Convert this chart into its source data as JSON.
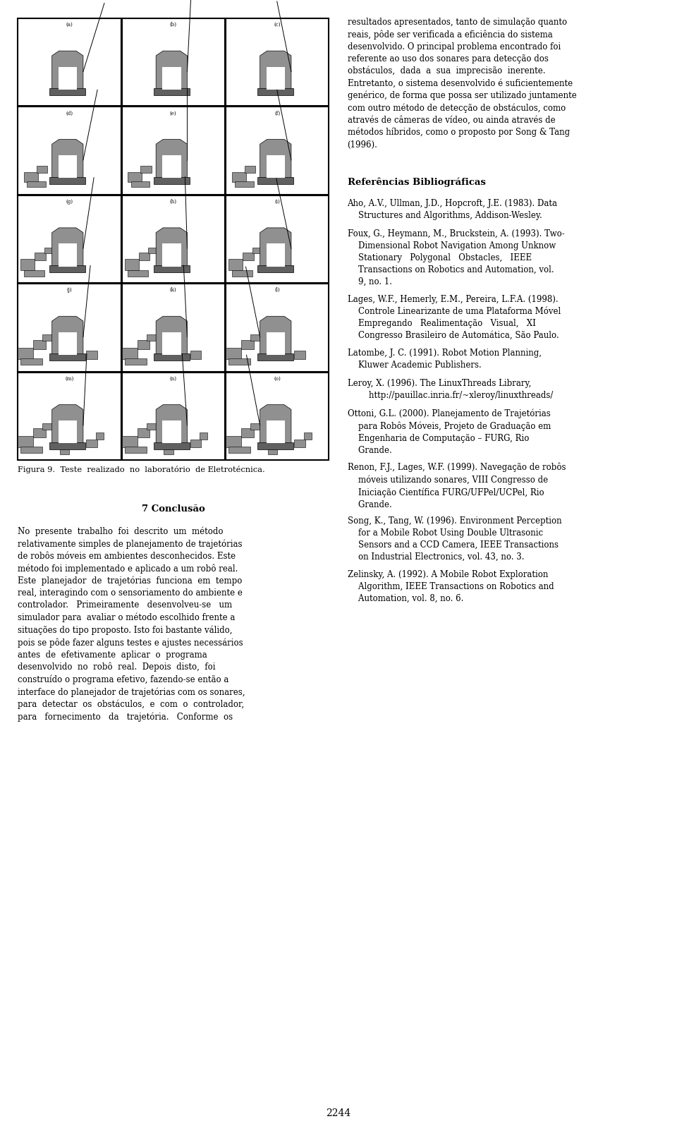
{
  "background_color": "#ffffff",
  "page_width": 9.6,
  "page_height": 15.96,
  "grid_labels": [
    "(a)",
    "(b)",
    "(c)",
    "(d)",
    "(e)",
    "(f)",
    "(g)",
    "(h)",
    "(i)",
    "(j)",
    "(k)",
    "(l)",
    "(m)",
    "(n)",
    "(o)"
  ],
  "figure_caption": "Figura 9.  Teste  realizado  no  laboratório  de Eletrotécnica.",
  "section_title": "7 Conclusão",
  "conclusion_text": "No  presente  trabalho  foi  descrito  um  método\nrelativamente simples de planejamento de trajetórias\nde robôs móveis em ambientes desconhecidos. Este\nmétodo foi implementado e aplicado a um robô real.\nEste  planejador  de  trajetórias  funciona  em  tempo\nreal, interagindo com o sensoriamento do ambiente e\ncontrolador.   Primeiramente   desenvolveu-se   um\nsimulador para  avaliar o método escolhido frente a\nsituações do tipo proposto. Isto foi bastante válido,\npois se pôde fazer alguns testes e ajustes necessários\nantes  de  efetivamente  aplicar  o  programa\ndesenvolvido  no  robô  real.  Depois  disto,  foi\nconstruído o programa efetivo, fazendo-se então a\ninterface do planejador de trajetórias com os sonares,\npara  detectar  os  obstáculos,  e  com  o  controlador,\npara   fornecimento   da   trajetória.   Conforme  os",
  "right_col_text_top": "resultados apresentados, tanto de simulação quanto\nreais, pôde ser verificada a eficiência do sistema\ndesenvolvido. O principal problema encontrado foi\nreferente ao uso dos sonares para detecção dos\nobstáculos,  dada  a  sua  imprecisão  inerente.\nEntretanto, o sistema desenvolvido é suficientemente\ngenérico, de forma que possa ser utilizado juntamente\ncom outro método de detecção de obstáculos, como\natravés de câmeras de vídeo, ou ainda através de\nmétodos híbridos, como o proposto por Song & Tang\n(1996).",
  "ref_title": "Referências Bibliográficas",
  "references": [
    {
      "first": "Aho, A.V., Ullman, J.D., Hopcroft, J.E. (1983). Data",
      "rest": "    Structures and Algorithms, Addison-Wesley."
    },
    {
      "first": "Foux, G., Heymann, M., Bruckstein, A. (1993). Two-",
      "rest": "    Dimensional Robot Navigation Among Unknow\n    Stationary   Polygonal   Obstacles,   IEEE\n    Transactions on Robotics and Automation, vol.\n    9, no. 1."
    },
    {
      "first": "Lages, W.F., Hemerly, E.M., Pereira, L.F.A. (1998).",
      "rest": "    Controle Linearizante de uma Plataforma Móvel\n    Empregando   Realimentação   Visual,   XI\n    Congresso Brasileiro de Automática, São Paulo."
    },
    {
      "first": "Latombe, J. C. (1991). Robot Motion Planning,",
      "rest": "    Kluwer Academic Publishers."
    },
    {
      "first": "Leroy, X. (1996). The LinuxThreads Library,",
      "rest": "        http://pauillac.inria.fr/~xleroy/linuxthreads/"
    },
    {
      "first": "Ottoni, G.L. (2000). Planejamento de Trajetórias",
      "rest": "    para Robôs Móveis, Projeto de Graduação em\n    Engenharia de Computação – FURG, Rio\n    Grande."
    },
    {
      "first": "Renon, F.J., Lages, W.F. (1999). Navegação de robôs",
      "rest": "    móveis utilizando sonares, VIII Congresso de\n    Iniciação Científica FURG/UFPel/UCPel, Rio\n    Grande."
    },
    {
      "first": "Song, K., Tang, W. (1996). Environment Perception",
      "rest": "    for a Mobile Robot Using Double Ultrasonic\n    Sensors and a CCD Camera, IEEE Transactions\n    on Industrial Electronics, vol. 43, no. 3."
    },
    {
      "first": "Zelinsky, A. (1992). A Mobile Robot Exploration",
      "rest": "    Algorithm, IEEE Transactions on Robotics and\n    Automation, vol. 8, no. 6."
    }
  ],
  "page_number": "2244",
  "font_size_body": 8.5,
  "font_size_caption": 8.2,
  "font_size_section": 9.5,
  "font_size_ref_title": 9.5,
  "font_size_page": 10
}
